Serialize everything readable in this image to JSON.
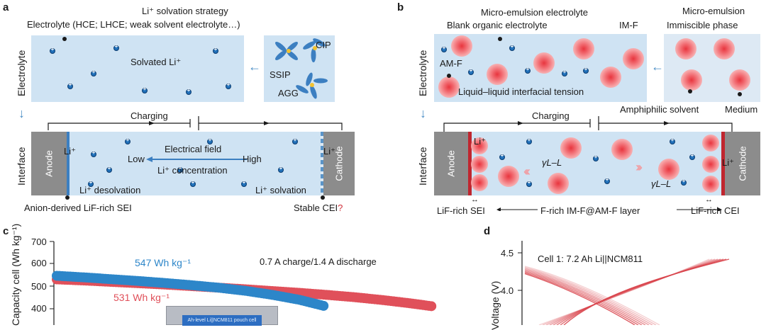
{
  "panels": [
    "a",
    "b",
    "c",
    "d"
  ],
  "a": {
    "title": "Li⁺ solvation strategy",
    "electrolyte_types": "Electrolyte (HCE; LHCE; weak solvent electrolyte…)",
    "solvated": "Solvated Li⁺",
    "row_label_top": "Electrolyte",
    "row_label_bottom": "Interface",
    "cluster_labels": [
      "CIP",
      "SSIP",
      "AGG"
    ],
    "charging": "Charging",
    "anode": "Anode",
    "cathode": "Cathode",
    "li_left": "Li⁺",
    "li_right": "Li⁺",
    "field": "Electrical field",
    "low": "Low",
    "high": "High",
    "concentration": "Li⁺ concentration",
    "desolvation": "Li⁺ desolvation",
    "solvation": "Li⁺ solvation",
    "sei": "Anion-derived LiF-rich SEI",
    "cei": "Stable CEI",
    "cei_q": "?"
  },
  "b": {
    "title": "Micro-emulsion electrolyte",
    "blank": "Blank organic electrolyte",
    "imf": "IM-F",
    "amf": "AM-F",
    "tension": "Liquid–liquid interfacial tension",
    "me_title": "Micro-emulsion",
    "immiscible": "Immiscible phase",
    "amphiphilic": "Amphiphilic solvent",
    "medium": "Medium",
    "row_label_top": "Electrolyte",
    "row_label_bottom": "Interface",
    "charging": "Charging",
    "anode": "Anode",
    "cathode": "Cathode",
    "li_left": "Li⁺",
    "li_right": "Li⁺",
    "gamma": "γL–L",
    "sei": "LiF-rich SEI",
    "layer": "F-rich IM-F@AM-F layer",
    "cei": "LiF-rich CEI"
  },
  "c": {
    "ylabel": "Capacity cell (Wh kg⁻¹)",
    "yticks": [
      "700",
      "600",
      "500",
      "400"
    ],
    "label_blue": "547 Wh kg⁻¹",
    "label_red": "531 Wh kg⁻¹",
    "condition": "0.7 A charge/1.4 A discharge",
    "inset_text": "Ah-level Li||NCM811 pouch cell",
    "colors": {
      "blue": "#2d86c9",
      "red": "#e0505a"
    }
  },
  "d": {
    "ylabel": "Voltage (V)",
    "yticks": [
      "4.5",
      "4.0"
    ],
    "cell": "Cell 1: 7.2 Ah Li||NCM811",
    "color": "#d9434b"
  },
  "chart_data": [
    {
      "type": "scatter",
      "title": "",
      "ylabel": "Capacity cell (Wh kg⁻¹)",
      "ylim": [
        350,
        700
      ],
      "series": [
        {
          "name": "547 Wh kg⁻¹",
          "x": [
            0,
            10,
            20,
            30,
            40,
            50,
            60,
            70,
            80,
            90,
            100
          ],
          "y": [
            547,
            540,
            532,
            524,
            515,
            505,
            494,
            480,
            462,
            440,
            410
          ]
        },
        {
          "name": "531 Wh kg⁻¹",
          "x": [
            0,
            10,
            20,
            30,
            40,
            50,
            60,
            70,
            80,
            90,
            100,
            110,
            120,
            130,
            140
          ],
          "y": [
            531,
            526,
            520,
            514,
            508,
            501,
            494,
            487,
            479,
            471,
            462,
            452,
            440,
            426,
            410
          ]
        }
      ]
    }
  ]
}
